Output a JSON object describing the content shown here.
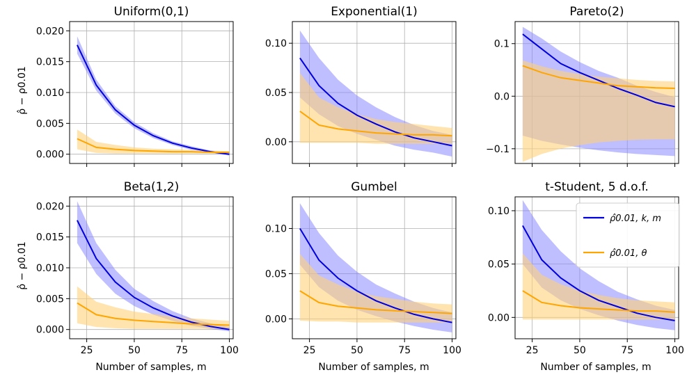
{
  "figure": {
    "ylabel": "ρ̂ − ρ0.01",
    "xlabel": "Number of samples, m",
    "legend": {
      "placement": "top-right of panel t-Student",
      "entries": [
        {
          "label": "ρ̂0.01, k, m",
          "color": "#0000dd"
        },
        {
          "label": "ρ̂0.01, θ",
          "color": "#ffa500"
        }
      ]
    },
    "colors": {
      "blue_line": "#0000dd",
      "blue_band": "#8080ff",
      "orange_line": "#ffa500",
      "orange_band": "#ffd27a",
      "grid": "#b0b0b0"
    }
  },
  "chart_data": [
    {
      "type": "line",
      "title": "Uniform(0,1)",
      "xlim": [
        16,
        102
      ],
      "ylim": [
        -0.0015,
        0.0215
      ],
      "xticks": [
        25,
        50,
        75,
        100
      ],
      "xtick_labels": [
        "",
        "",
        "",
        ""
      ],
      "yticks": [
        0.0,
        0.005,
        0.01,
        0.015,
        0.02
      ],
      "ytick_labels": [
        "0.000",
        "0.005",
        "0.010",
        "0.015",
        "0.020"
      ],
      "grid": true,
      "x": [
        20,
        30,
        40,
        50,
        60,
        70,
        80,
        90,
        100
      ],
      "series": [
        {
          "name": "ρ̂0.01, k, m",
          "color": "#0000dd",
          "values": [
            0.0177,
            0.0112,
            0.0072,
            0.0047,
            0.003,
            0.0018,
            0.001,
            0.0004,
            0.0
          ],
          "lower": [
            0.0163,
            0.0103,
            0.0066,
            0.0042,
            0.0026,
            0.0015,
            0.0007,
            0.0002,
            -0.0002
          ],
          "upper": [
            0.0191,
            0.0121,
            0.0078,
            0.0052,
            0.0034,
            0.0021,
            0.0013,
            0.0006,
            0.0002
          ]
        },
        {
          "name": "ρ̂0.01, θ",
          "color": "#ffa500",
          "values": [
            0.0025,
            0.0011,
            0.0008,
            0.0006,
            0.0005,
            0.0004,
            0.0004,
            0.0003,
            0.0003
          ],
          "lower": [
            0.0008,
            0.0002,
            0.0001,
            0.0001,
            0.0001,
            0.0001,
            0.0001,
            0.0001,
            0.0001
          ],
          "upper": [
            0.004,
            0.002,
            0.0015,
            0.0011,
            0.0009,
            0.0008,
            0.0007,
            0.0006,
            0.0005
          ]
        }
      ]
    },
    {
      "type": "line",
      "title": "Exponential(1)",
      "xlim": [
        16,
        102
      ],
      "ylim": [
        -0.022,
        0.122
      ],
      "xticks": [
        25,
        50,
        75,
        100
      ],
      "xtick_labels": [
        "",
        "",
        "",
        ""
      ],
      "yticks": [
        0.0,
        0.05,
        0.1
      ],
      "ytick_labels": [
        "0.00",
        "0.05",
        "0.10"
      ],
      "grid": true,
      "x": [
        20,
        30,
        40,
        50,
        60,
        70,
        80,
        90,
        100
      ],
      "series": [
        {
          "name": "ρ̂0.01, k, m",
          "color": "#0000dd",
          "values": [
            0.085,
            0.057,
            0.039,
            0.027,
            0.018,
            0.01,
            0.004,
            0.0,
            -0.004
          ],
          "lower": [
            0.045,
            0.028,
            0.016,
            0.008,
            0.002,
            -0.004,
            -0.008,
            -0.011,
            -0.015
          ],
          "upper": [
            0.113,
            0.085,
            0.063,
            0.047,
            0.035,
            0.025,
            0.017,
            0.011,
            0.007
          ]
        },
        {
          "name": "ρ̂0.01, θ",
          "color": "#ffa500",
          "values": [
            0.031,
            0.017,
            0.013,
            0.011,
            0.009,
            0.008,
            0.007,
            0.007,
            0.006
          ],
          "lower": [
            -0.001,
            -0.001,
            -0.001,
            -0.001,
            -0.002,
            -0.002,
            -0.002,
            -0.002,
            -0.002
          ],
          "upper": [
            0.07,
            0.045,
            0.035,
            0.028,
            0.023,
            0.02,
            0.018,
            0.016,
            0.014
          ]
        }
      ]
    },
    {
      "type": "line",
      "title": "Pareto(2)",
      "xlim": [
        16,
        102
      ],
      "ylim": [
        -0.128,
        0.142
      ],
      "xticks": [
        25,
        50,
        75,
        100
      ],
      "xtick_labels": [
        "",
        "",
        "",
        ""
      ],
      "yticks": [
        -0.1,
        0.0,
        0.1
      ],
      "ytick_labels": [
        "−0.1",
        "0.0",
        "0.1"
      ],
      "grid": true,
      "x": [
        20,
        30,
        40,
        50,
        60,
        70,
        80,
        90,
        100
      ],
      "series": [
        {
          "name": "ρ̂0.01, k, m",
          "color": "#0000dd",
          "values": [
            0.118,
            0.09,
            0.062,
            0.045,
            0.03,
            0.015,
            0.002,
            -0.012,
            -0.02
          ],
          "lower": [
            -0.075,
            -0.085,
            -0.092,
            -0.098,
            -0.103,
            -0.107,
            -0.11,
            -0.112,
            -0.114
          ],
          "upper": [
            0.132,
            0.11,
            0.085,
            0.065,
            0.048,
            0.035,
            0.02,
            0.008,
            -0.002
          ]
        },
        {
          "name": "ρ̂0.01, θ",
          "color": "#ffa500",
          "values": [
            0.058,
            0.045,
            0.035,
            0.03,
            0.025,
            0.02,
            0.018,
            0.016,
            0.015
          ],
          "lower": [
            -0.125,
            -0.11,
            -0.1,
            -0.093,
            -0.088,
            -0.085,
            -0.083,
            -0.082,
            -0.082
          ],
          "upper": [
            0.068,
            0.057,
            0.048,
            0.042,
            0.037,
            0.034,
            0.031,
            0.029,
            0.028
          ]
        }
      ]
    },
    {
      "type": "line",
      "title": "Beta(1,2)",
      "xlim": [
        16,
        102
      ],
      "ylim": [
        -0.0015,
        0.0215
      ],
      "xticks": [
        25,
        50,
        75,
        100
      ],
      "xtick_labels": [
        "25",
        "50",
        "75",
        "100"
      ],
      "yticks": [
        0.0,
        0.005,
        0.01,
        0.015,
        0.02
      ],
      "ytick_labels": [
        "0.000",
        "0.005",
        "0.010",
        "0.015",
        "0.020"
      ],
      "grid": true,
      "x": [
        20,
        30,
        40,
        50,
        60,
        70,
        80,
        90,
        100
      ],
      "series": [
        {
          "name": "ρ̂0.01, k, m",
          "color": "#0000dd",
          "values": [
            0.0177,
            0.0115,
            0.0077,
            0.0052,
            0.0035,
            0.0022,
            0.0012,
            0.0005,
            0.0
          ],
          "lower": [
            0.014,
            0.009,
            0.0058,
            0.0038,
            0.0024,
            0.0014,
            0.0006,
            0.0001,
            -0.0003
          ],
          "upper": [
            0.0208,
            0.014,
            0.0097,
            0.0066,
            0.0046,
            0.003,
            0.0018,
            0.001,
            0.0004
          ]
        },
        {
          "name": "ρ̂0.01, θ",
          "color": "#ffa500",
          "values": [
            0.0043,
            0.0024,
            0.0018,
            0.0015,
            0.0013,
            0.0011,
            0.0009,
            0.0008,
            0.0007
          ],
          "lower": [
            0.001,
            0.0004,
            0.0002,
            0.0001,
            0.0001,
            0.0001,
            0.0001,
            0.0001,
            0.0001
          ],
          "upper": [
            0.007,
            0.0045,
            0.0036,
            0.0029,
            0.0025,
            0.0021,
            0.0018,
            0.0016,
            0.0014
          ]
        }
      ]
    },
    {
      "type": "line",
      "title": "Gumbel",
      "xlim": [
        16,
        102
      ],
      "ylim": [
        -0.022,
        0.135
      ],
      "xticks": [
        25,
        50,
        75,
        100
      ],
      "xtick_labels": [
        "25",
        "50",
        "75",
        "100"
      ],
      "yticks": [
        0.0,
        0.05,
        0.1
      ],
      "ytick_labels": [
        "0.00",
        "0.05",
        "0.10"
      ],
      "grid": true,
      "x": [
        20,
        30,
        40,
        50,
        60,
        70,
        80,
        90,
        100
      ],
      "series": [
        {
          "name": "ρ̂0.01, k, m",
          "color": "#0000dd",
          "values": [
            0.1,
            0.065,
            0.045,
            0.031,
            0.02,
            0.012,
            0.005,
            0.0,
            -0.004
          ],
          "lower": [
            0.06,
            0.035,
            0.02,
            0.01,
            0.003,
            -0.003,
            -0.008,
            -0.012,
            -0.015
          ],
          "upper": [
            0.128,
            0.095,
            0.07,
            0.052,
            0.038,
            0.028,
            0.019,
            0.012,
            0.007
          ]
        },
        {
          "name": "ρ̂0.01, θ",
          "color": "#ffa500",
          "values": [
            0.031,
            0.018,
            0.014,
            0.012,
            0.01,
            0.009,
            0.008,
            0.007,
            0.006
          ],
          "lower": [
            -0.002,
            -0.003,
            -0.003,
            -0.004,
            -0.004,
            -0.004,
            -0.004,
            -0.004,
            -0.004
          ],
          "upper": [
            0.072,
            0.048,
            0.038,
            0.03,
            0.025,
            0.022,
            0.019,
            0.017,
            0.016
          ]
        }
      ]
    },
    {
      "type": "line",
      "title": "t-Student, 5 d.o.f.",
      "xlim": [
        16,
        102
      ],
      "ylim": [
        -0.02,
        0.113
      ],
      "xticks": [
        25,
        50,
        75,
        100
      ],
      "xtick_labels": [
        "25",
        "50",
        "75",
        "100"
      ],
      "yticks": [
        0.0,
        0.05,
        0.1
      ],
      "ytick_labels": [
        "0.00",
        "0.05",
        "0.10"
      ],
      "grid": true,
      "x": [
        20,
        30,
        40,
        50,
        60,
        70,
        80,
        90,
        100
      ],
      "series": [
        {
          "name": "ρ̂0.01, k, m",
          "color": "#0000dd",
          "values": [
            0.086,
            0.054,
            0.037,
            0.025,
            0.016,
            0.01,
            0.004,
            0.0,
            -0.003
          ],
          "lower": [
            0.05,
            0.028,
            0.016,
            0.008,
            0.002,
            -0.003,
            -0.007,
            -0.01,
            -0.012
          ],
          "upper": [
            0.11,
            0.082,
            0.062,
            0.046,
            0.034,
            0.024,
            0.017,
            0.011,
            0.007
          ]
        },
        {
          "name": "ρ̂0.01, θ",
          "color": "#ffa500",
          "values": [
            0.025,
            0.014,
            0.011,
            0.009,
            0.008,
            0.007,
            0.006,
            0.006,
            0.005
          ],
          "lower": [
            -0.002,
            -0.002,
            -0.002,
            -0.002,
            -0.002,
            -0.002,
            -0.002,
            -0.002,
            -0.002
          ],
          "upper": [
            0.06,
            0.04,
            0.031,
            0.025,
            0.021,
            0.018,
            0.016,
            0.015,
            0.014
          ]
        }
      ]
    }
  ]
}
